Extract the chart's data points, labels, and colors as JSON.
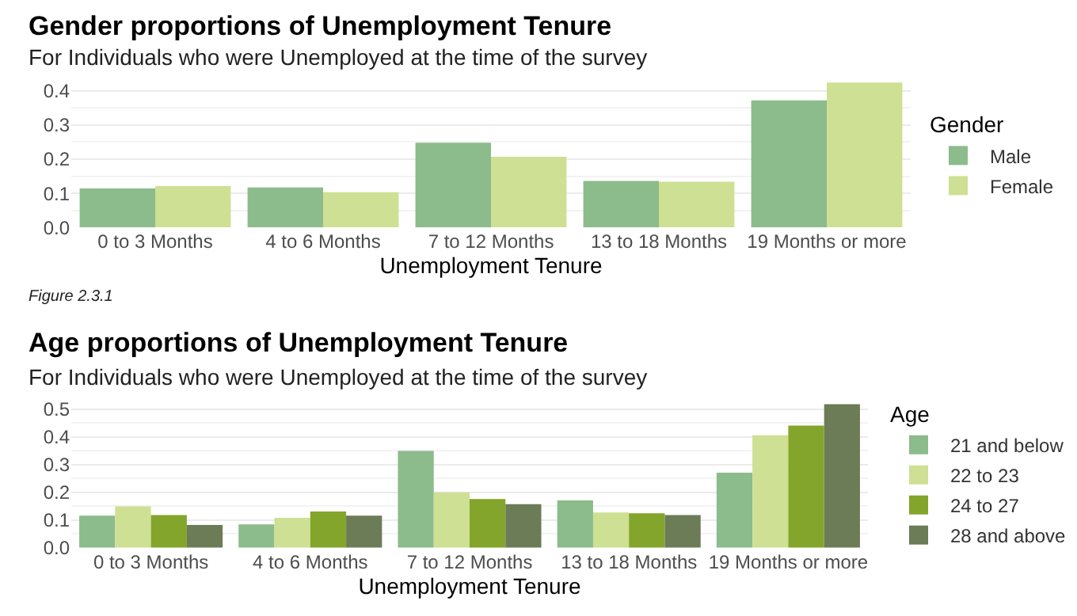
{
  "chart_data": [
    {
      "type": "bar",
      "title": "Gender proportions of Unemployment Tenure",
      "subtitle": "For Individuals who were Unemployed at the time of the survey",
      "xlabel": "Unemployment Tenure",
      "legend_title": "Gender",
      "categories": [
        "0 to 3 Months",
        "4 to 6 Months",
        "7 to 12 Months",
        "13 to 18 Months",
        "19 Months or more"
      ],
      "series": [
        {
          "name": "Male",
          "color": "#8cbb8c",
          "values": [
            0.114,
            0.117,
            0.248,
            0.136,
            0.372
          ]
        },
        {
          "name": "Female",
          "color": "#cde093",
          "values": [
            0.121,
            0.103,
            0.207,
            0.134,
            0.424
          ]
        }
      ],
      "ylim": [
        0,
        0.43
      ],
      "yticks": [
        {
          "value": 0,
          "label": "0.0"
        },
        0.1,
        0.2,
        0.3,
        0.4
      ],
      "grid": "y",
      "legend": "right",
      "annotations": [
        "Figure 2.3.1"
      ]
    },
    {
      "type": "bar",
      "title": "Age proportions of Unemployment Tenure",
      "subtitle": "For Individuals who were Unemployed at the time of the survey",
      "xlabel": "Unemployment Tenure",
      "legend_title": "Age",
      "categories": [
        "0 to 3 Months",
        "4 to 6 Months",
        "7 to 12 Months",
        "13 to 18 Months",
        "19 Months or more"
      ],
      "series": [
        {
          "name": "21 and below",
          "color": "#8cbb8c",
          "values": [
            0.116,
            0.084,
            0.349,
            0.171,
            0.271
          ]
        },
        {
          "name": "22 to 23",
          "color": "#cde093",
          "values": [
            0.149,
            0.108,
            0.2,
            0.127,
            0.406
          ]
        },
        {
          "name": "24 to 27",
          "color": "#83a52b",
          "values": [
            0.118,
            0.131,
            0.176,
            0.124,
            0.441
          ]
        },
        {
          "name": "28 and above",
          "color": "#6b7c56",
          "values": [
            0.082,
            0.116,
            0.157,
            0.118,
            0.518
          ]
        }
      ],
      "ylim": [
        0,
        0.525
      ],
      "yticks": [
        {
          "value": 0,
          "label": "0.0"
        },
        0.1,
        0.2,
        0.3,
        0.4,
        0.5
      ],
      "grid": "y",
      "legend": "right"
    }
  ]
}
